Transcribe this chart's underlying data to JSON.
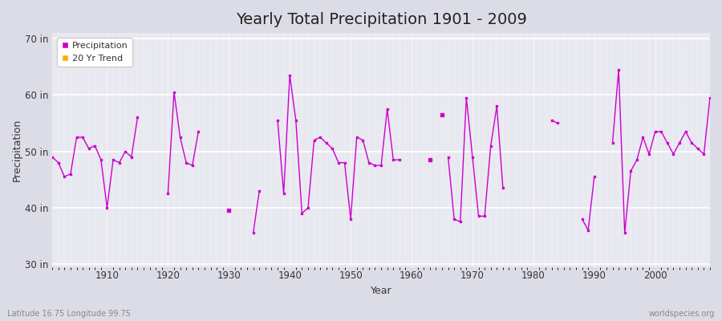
{
  "title": "Yearly Total Precipitation 1901 - 2009",
  "xlabel": "Year",
  "ylabel": "Precipitation",
  "xlim": [
    1901,
    2009
  ],
  "ylim": [
    29.5,
    71
  ],
  "yticks": [
    30,
    40,
    50,
    60,
    70
  ],
  "ytick_labels": [
    "30 in",
    "40 in",
    "50 in",
    "60 in",
    "70 in"
  ],
  "xticks": [
    1910,
    1920,
    1930,
    1940,
    1950,
    1960,
    1970,
    1980,
    1990,
    2000
  ],
  "bg_outer": "#dcdce6",
  "bg_inner": "#e8e8f0",
  "line_color": "#cc00cc",
  "trend_color": "#ffaa00",
  "title_fontsize": 14,
  "years": [
    1901,
    1902,
    1903,
    1904,
    1905,
    1906,
    1907,
    1908,
    1909,
    1910,
    1911,
    1912,
    1913,
    1914,
    1915,
    1920,
    1921,
    1922,
    1923,
    1924,
    1925,
    1930,
    1934,
    1935,
    1938,
    1939,
    1940,
    1941,
    1942,
    1943,
    1944,
    1945,
    1946,
    1947,
    1948,
    1949,
    1950,
    1951,
    1952,
    1953,
    1954,
    1955,
    1956,
    1957,
    1958,
    1963,
    1965,
    1966,
    1967,
    1968,
    1969,
    1970,
    1971,
    1972,
    1973,
    1974,
    1975,
    1983,
    1984,
    1988,
    1989,
    1990,
    1993,
    1994,
    1995,
    1996,
    1997,
    1998,
    1999,
    2000,
    2001,
    2002,
    2003,
    2004,
    2005,
    2006,
    2007,
    2008,
    2009
  ],
  "segments": [
    {
      "years": [
        1901,
        1902,
        1903,
        1904,
        1905,
        1906,
        1907,
        1908,
        1909,
        1910,
        1911,
        1912,
        1913,
        1914,
        1915
      ],
      "values": [
        49.0,
        48.0,
        45.5,
        46.0,
        52.5,
        52.5,
        50.5,
        51.0,
        48.5,
        40.0,
        48.5,
        48.0,
        50.0,
        49.0,
        56.0
      ]
    },
    {
      "years": [
        1920,
        1921,
        1922,
        1923,
        1924,
        1925
      ],
      "values": [
        42.5,
        60.5,
        52.5,
        48.0,
        47.5,
        53.5
      ]
    },
    {
      "years": [
        1930
      ],
      "values": [
        39.5
      ]
    },
    {
      "years": [
        1934,
        1935
      ],
      "values": [
        35.5,
        43.0
      ]
    },
    {
      "years": [
        1938,
        1939,
        1940,
        1941,
        1942,
        1943,
        1944,
        1945,
        1946,
        1947,
        1948,
        1949,
        1950,
        1951,
        1952,
        1953,
        1954,
        1955,
        1956,
        1957,
        1958
      ],
      "values": [
        55.5,
        42.5,
        63.5,
        55.5,
        39.0,
        40.0,
        52.0,
        52.5,
        51.5,
        50.5,
        48.0,
        48.0,
        38.0,
        52.5,
        52.0,
        48.0,
        47.5,
        47.5,
        57.5,
        48.5,
        48.5
      ]
    },
    {
      "years": [
        1963
      ],
      "values": [
        48.5
      ]
    },
    {
      "years": [
        1965
      ],
      "values": [
        56.5
      ]
    },
    {
      "years": [
        1966,
        1967,
        1968,
        1969,
        1970,
        1971,
        1972,
        1973,
        1974,
        1975
      ],
      "values": [
        49.0,
        38.0,
        37.5,
        59.5,
        49.0,
        38.5,
        38.5,
        51.0,
        58.0,
        43.5
      ]
    },
    {
      "years": [
        1983,
        1984
      ],
      "values": [
        55.5,
        55.0
      ]
    },
    {
      "years": [
        1988,
        1989,
        1990
      ],
      "values": [
        38.0,
        36.0,
        45.5
      ]
    },
    {
      "years": [
        1993,
        1994,
        1995,
        1996,
        1997,
        1998,
        1999,
        2000,
        2001,
        2002,
        2003,
        2004,
        2005,
        2006,
        2007,
        2008,
        2009
      ],
      "values": [
        51.5,
        64.5,
        35.5,
        46.5,
        48.5,
        52.5,
        49.5,
        53.5,
        53.5,
        51.5,
        49.5,
        51.5,
        53.5,
        51.5,
        50.5,
        49.5,
        59.5
      ]
    }
  ]
}
